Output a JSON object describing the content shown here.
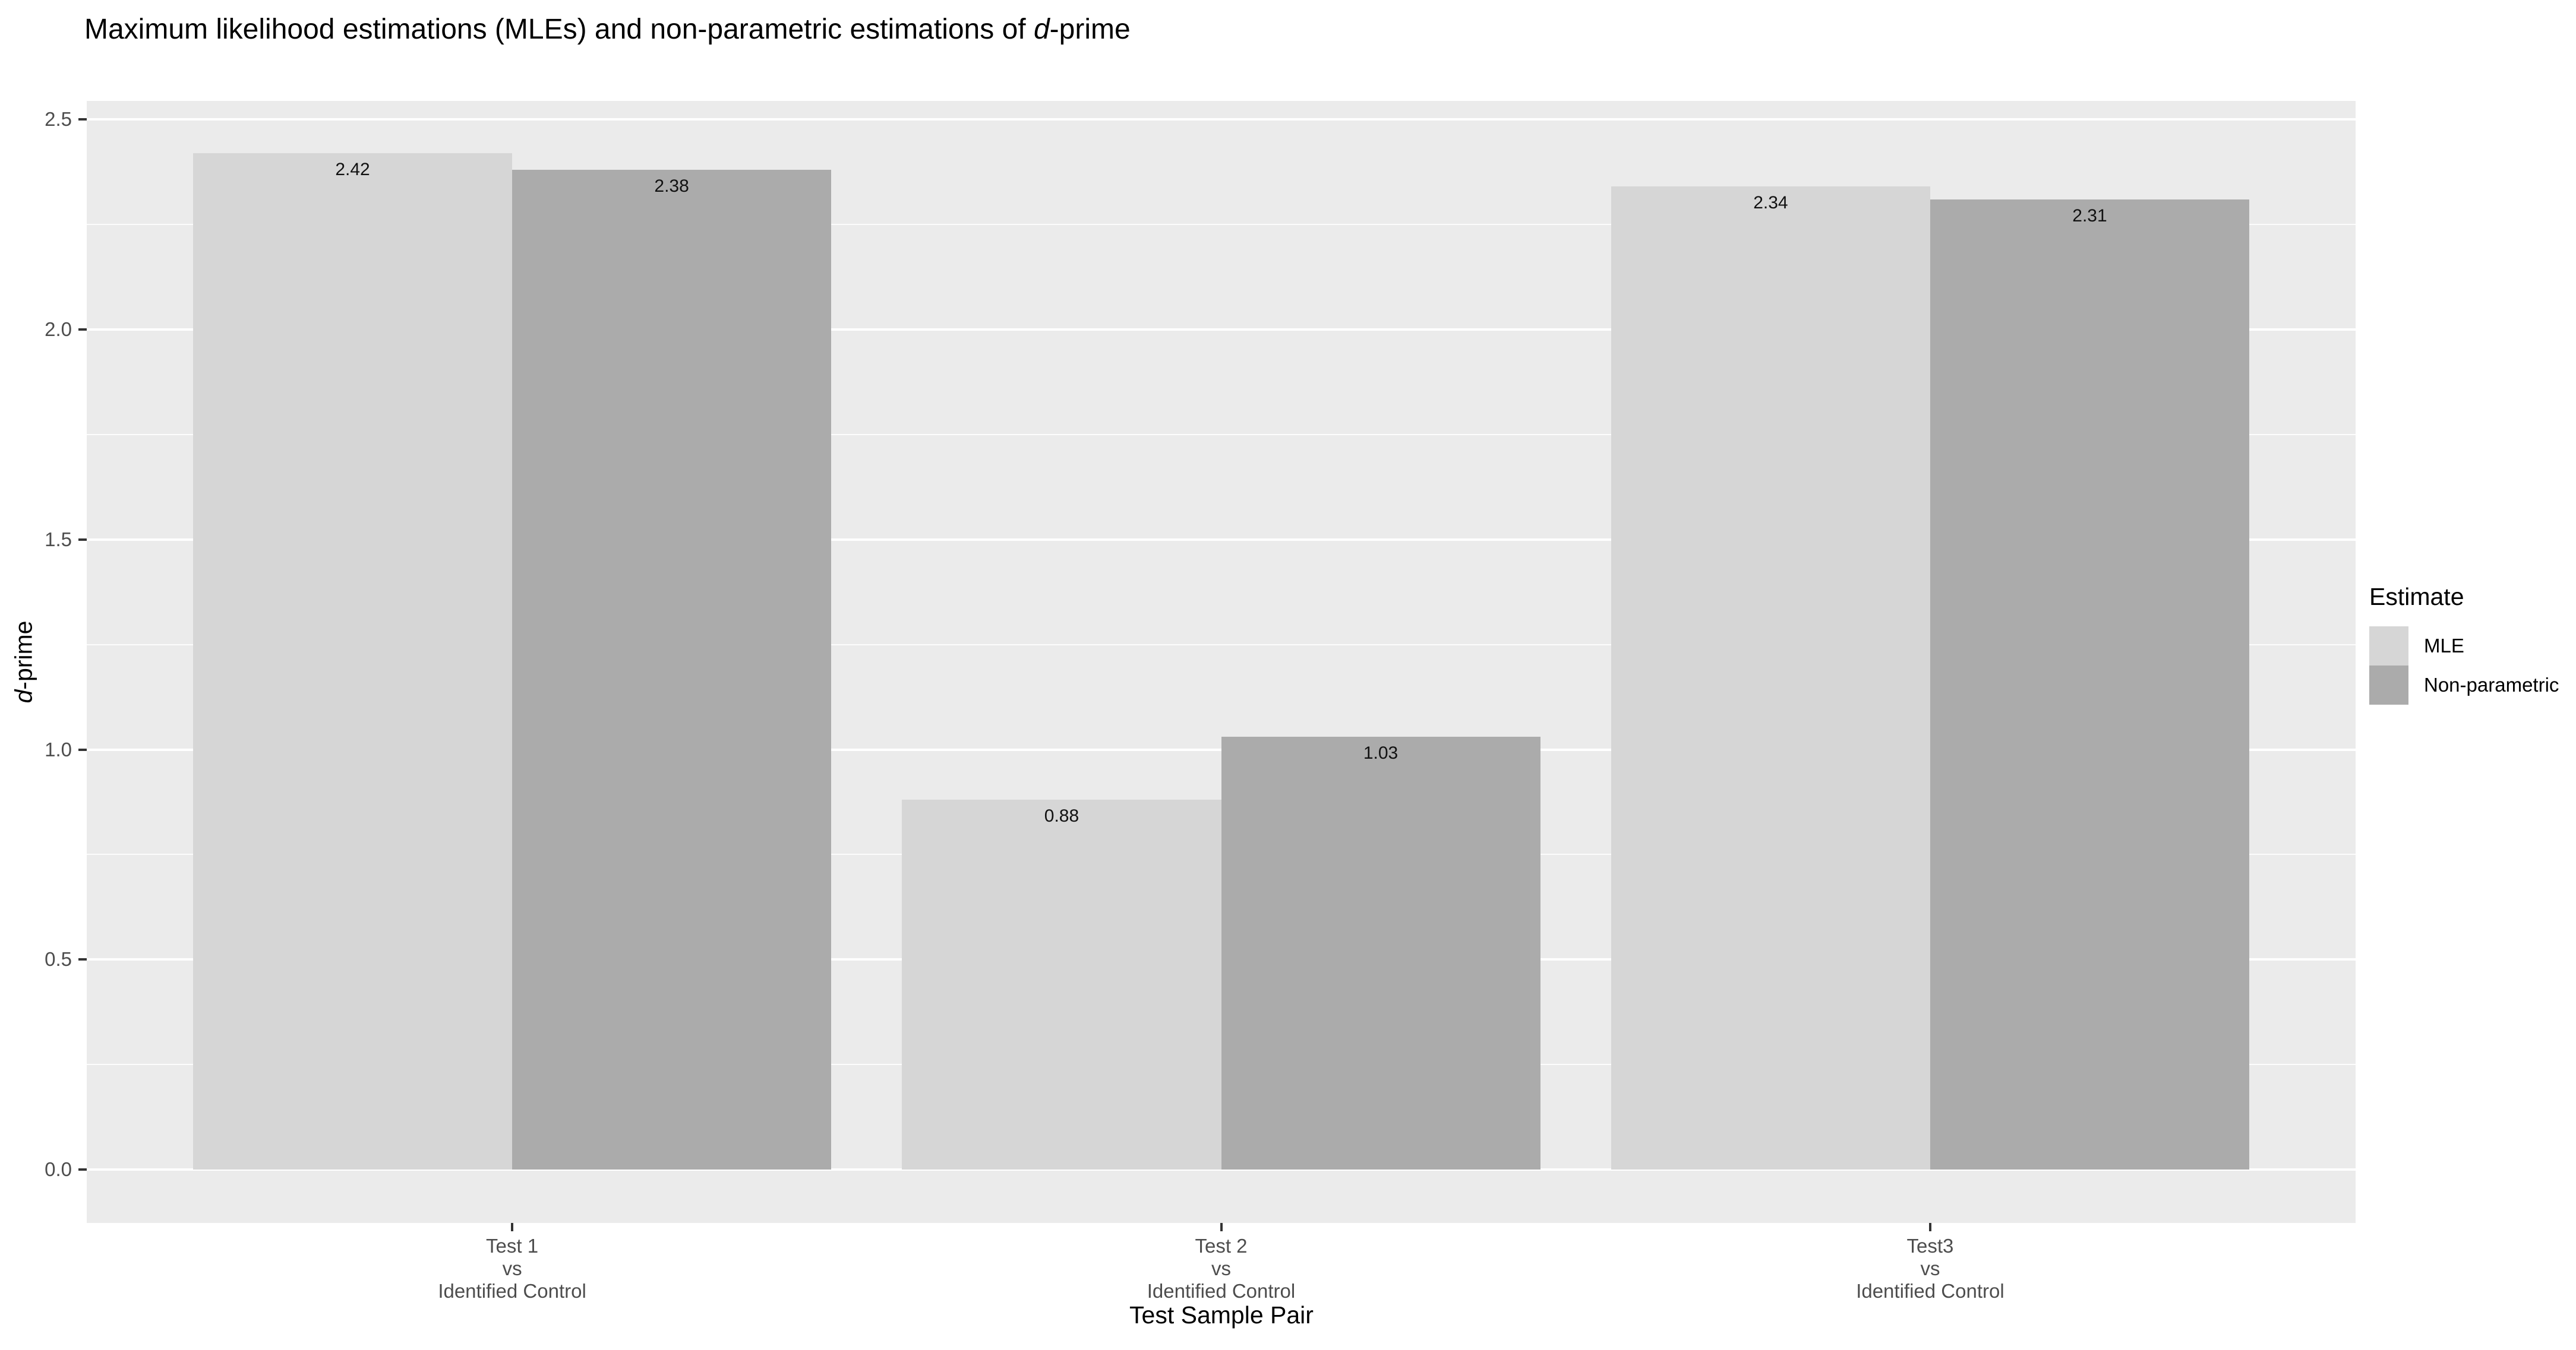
{
  "title": {
    "prefix": "Maximum likelihood estimations (MLEs) and non-parametric estimations of ",
    "italic": "d",
    "suffix": "-prime"
  },
  "y_axis": {
    "label_italic": "d",
    "label_suffix": "-prime",
    "ticks": [
      {
        "label": "0.0",
        "value": 0.0
      },
      {
        "label": "0.5",
        "value": 0.5
      },
      {
        "label": "1.0",
        "value": 1.0
      },
      {
        "label": "1.5",
        "value": 1.5
      },
      {
        "label": "2.0",
        "value": 2.0
      },
      {
        "label": "2.5",
        "value": 2.5
      }
    ]
  },
  "x_axis": {
    "title": "Test Sample Pair",
    "categories": [
      {
        "lines": [
          "Test 1",
          "vs",
          "Identified Control"
        ]
      },
      {
        "lines": [
          "Test 2",
          "vs",
          "Identified Control"
        ]
      },
      {
        "lines": [
          "Test3",
          "vs",
          "Identified Control"
        ]
      }
    ]
  },
  "legend": {
    "title": "Estimate",
    "items": [
      {
        "label": "MLE",
        "color": "#D6D6D6"
      },
      {
        "label": "Non-parametric",
        "color": "#ABABAB"
      }
    ]
  },
  "chart_data": {
    "type": "bar",
    "title": "Maximum likelihood estimations (MLEs) and non-parametric estimations of d-prime",
    "xlabel": "Test Sample Pair",
    "ylabel": "d-prime",
    "categories": [
      "Test 1 vs Identified Control",
      "Test 2 vs Identified Control",
      "Test3 vs Identified Control"
    ],
    "series": [
      {
        "name": "MLE",
        "color": "#D6D6D6",
        "values": [
          2.42,
          0.88,
          2.34
        ],
        "labels": [
          "2.42",
          "0.88",
          "2.34"
        ]
      },
      {
        "name": "Non-parametric",
        "color": "#ABABAB",
        "values": [
          2.38,
          1.03,
          2.31
        ],
        "labels": [
          "2.38",
          "1.03",
          "2.31"
        ]
      }
    ],
    "ylim": [
      -0.121,
      2.545
    ],
    "y_major_gridlines": [
      0,
      0.5,
      1.0,
      1.5,
      2.0,
      2.5
    ],
    "y_minor_gridlines": [
      0.25,
      0.75,
      1.25,
      1.75,
      2.25
    ],
    "grid": true,
    "grid_color": "#FFFFFF",
    "panel_bg": "#EBEBEB",
    "legend_position": "right",
    "legend_title": "Estimate",
    "bar_label_color": "#111111",
    "axis_text_color": "#4D4D4D"
  }
}
